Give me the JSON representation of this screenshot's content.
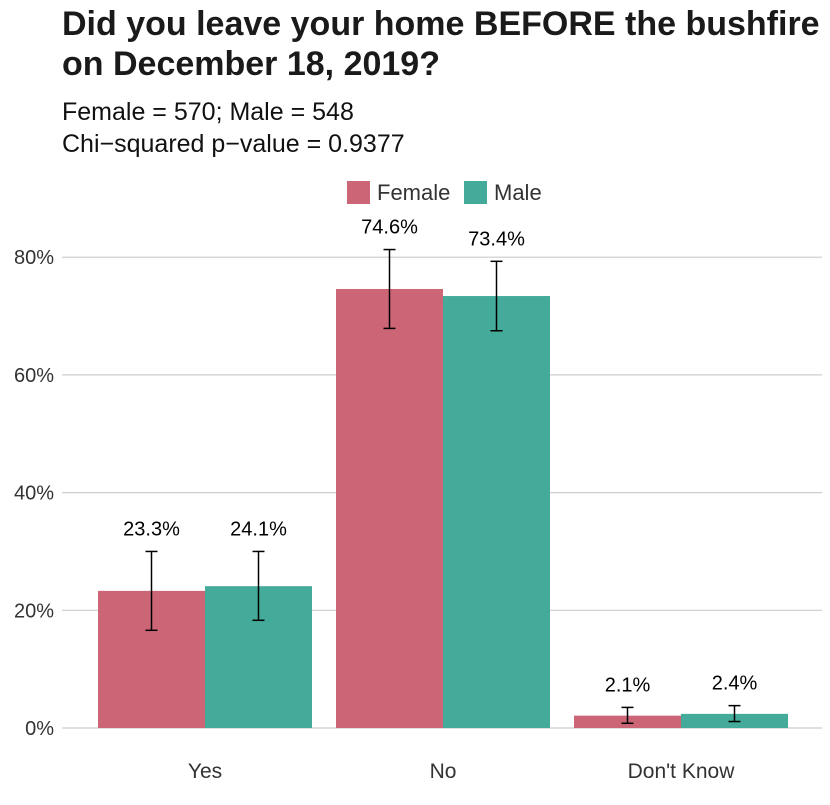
{
  "chart_data": {
    "type": "bar",
    "title": "Did you leave your home BEFORE the bushfire on December 18, 2019?",
    "subtitle_lines": [
      "Female = 570; Male = 548",
      "Chi−squared p−value = 0.9377"
    ],
    "categories": [
      "Yes",
      "No",
      "Don't Know"
    ],
    "series": [
      {
        "name": "Female",
        "color": "#cc6677",
        "values": [
          23.3,
          74.6,
          2.1
        ],
        "labels": [
          "23.3%",
          "74.6%",
          "2.1%"
        ],
        "err_low": [
          16.6,
          67.9,
          0.8
        ],
        "err_high": [
          30.0,
          81.3,
          3.5
        ]
      },
      {
        "name": "Male",
        "color": "#44aa99",
        "values": [
          24.1,
          73.4,
          2.4
        ],
        "labels": [
          "24.1%",
          "73.4%",
          "2.4%"
        ],
        "err_low": [
          18.3,
          67.5,
          1.1
        ],
        "err_high": [
          30.0,
          79.3,
          3.8
        ]
      }
    ],
    "y_ticks": [
      0,
      20,
      40,
      60,
      80
    ],
    "y_tick_labels": [
      "0%",
      "20%",
      "40%",
      "60%",
      "80%"
    ],
    "ylim": [
      0,
      80
    ],
    "grid": true,
    "legend_position": "top"
  }
}
